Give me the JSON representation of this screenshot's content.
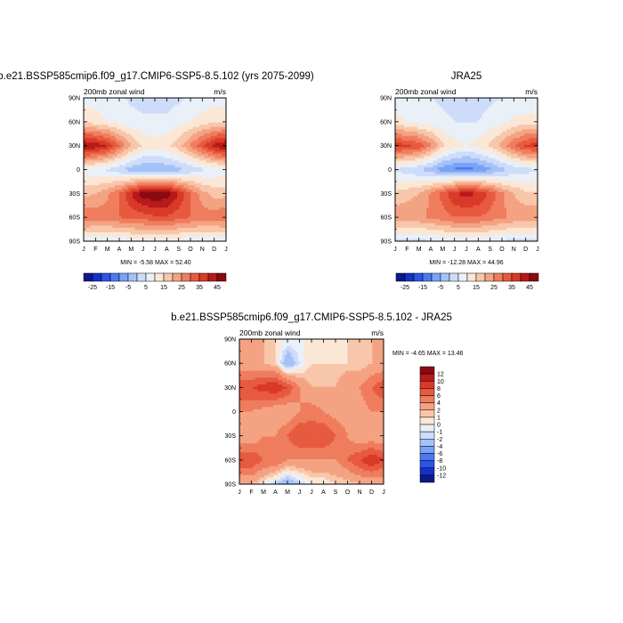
{
  "panels": {
    "top_left": {
      "title": "b.e21.BSSP585cmip6.f09_g17.CMIP6-SSP5-8.5.102 (yrs 2075-2099)",
      "left_label": "200mb zonal wind",
      "right_label": "m/s",
      "min_label": "MIN = ",
      "min_value": "-5.58",
      "max_label": "MAX = ",
      "max_value": "52.40"
    },
    "top_right": {
      "title": "JRA25",
      "left_label": "200mb zonal wind",
      "right_label": "m/s",
      "min_label": "MIN = ",
      "min_value": "-12.28",
      "max_label": "MAX = ",
      "max_value": "44.96"
    },
    "bottom": {
      "title": "b.e21.BSSP585cmip6.f09_g17.CMIP6-SSP5-8.5.102 - JRA25",
      "left_label": "200mb zonal wind",
      "right_label": "m/s",
      "min_label": "MIN = ",
      "min_value": "-4.65",
      "max_label": "MAX = ",
      "max_value": "13.46"
    }
  },
  "colorbars": {
    "top": {
      "labels": [
        "-25",
        "-15",
        "-5",
        "5",
        "15",
        "25",
        "35",
        "45"
      ],
      "colors": [
        "#0a1a8c",
        "#1530c8",
        "#2a55e6",
        "#4a7af2",
        "#7aa2f6",
        "#a5c2f8",
        "#cddcf8",
        "#eaf0f8",
        "#fbe7d6",
        "#f8c6aa",
        "#f4a382",
        "#ef7d5e",
        "#e75a40",
        "#d93a28",
        "#b8191a",
        "#8a0a10"
      ]
    },
    "bottom": {
      "labels": [
        "12",
        "10",
        "8",
        "6",
        "4",
        "2",
        "1",
        "0",
        "-1",
        "-2",
        "-4",
        "-6",
        "-8",
        "-10",
        "-12"
      ],
      "colors": [
        "#8a0a10",
        "#b8191a",
        "#d93a28",
        "#e75a40",
        "#ef7d5e",
        "#f4a382",
        "#f8c6aa",
        "#fbe7d6",
        "#eaf0f8",
        "#cddcf8",
        "#a5c2f8",
        "#7aa2f6",
        "#4a7af2",
        "#2a55e6",
        "#1530c8",
        "#0a1a8c"
      ]
    }
  },
  "chart_data": [
    {
      "type": "heatmap",
      "title": "b.e21.BSSP585cmip6.f09_g17.CMIP6-SSP5-8.5.102 (yrs 2075-2099)",
      "x": [
        "J",
        "F",
        "M",
        "A",
        "M",
        "J",
        "J",
        "A",
        "S",
        "O",
        "N",
        "D",
        "J"
      ],
      "y": [
        "90N",
        "60N",
        "30N",
        "0",
        "30S",
        "60S",
        "90S"
      ],
      "ylim": [
        -90,
        90
      ],
      "grid": false,
      "series": [
        {
          "values": [
            [
              8,
              8,
              7,
              6,
              4,
              3,
              3,
              3,
              4,
              6,
              7,
              8,
              8
            ],
            [
              14,
              12,
              10,
              8,
              7,
              6,
              6,
              6,
              8,
              10,
              12,
              14,
              14
            ],
            [
              46,
              44,
              40,
              30,
              20,
              14,
              12,
              14,
              18,
              26,
              34,
              42,
              46
            ],
            [
              8,
              6,
              4,
              1,
              -3,
              -5,
              -5,
              -4,
              -2,
              1,
              4,
              6,
              8
            ],
            [
              18,
              20,
              24,
              30,
              40,
              48,
              50,
              48,
              40,
              30,
              22,
              18,
              18
            ],
            [
              30,
              28,
              28,
              30,
              32,
              32,
              34,
              34,
              32,
              30,
              28,
              28,
              30
            ],
            [
              6,
              6,
              6,
              6,
              7,
              8,
              8,
              8,
              7,
              6,
              6,
              6,
              6
            ]
          ]
        }
      ]
    },
    {
      "type": "heatmap",
      "title": "JRA25",
      "x": [
        "J",
        "F",
        "M",
        "A",
        "M",
        "J",
        "J",
        "A",
        "S",
        "O",
        "N",
        "D",
        "J"
      ],
      "y": [
        "90N",
        "60N",
        "30N",
        "0",
        "30S",
        "60S",
        "90S"
      ],
      "ylim": [
        -90,
        90
      ],
      "grid": false,
      "series": [
        {
          "values": [
            [
              6,
              6,
              5,
              5,
              4,
              3,
              3,
              3,
              4,
              5,
              6,
              6,
              6
            ],
            [
              12,
              10,
              8,
              7,
              6,
              5,
              5,
              5,
              7,
              9,
              11,
              12,
              12
            ],
            [
              38,
              36,
              34,
              26,
              16,
              12,
              10,
              12,
              16,
              22,
              30,
              36,
              38
            ],
            [
              4,
              2,
              0,
              -3,
              -8,
              -11,
              -12,
              -10,
              -6,
              -2,
              1,
              3,
              4
            ],
            [
              16,
              18,
              20,
              26,
              32,
              40,
              42,
              40,
              34,
              26,
              20,
              16,
              16
            ],
            [
              24,
              24,
              24,
              26,
              28,
              30,
              30,
              30,
              28,
              26,
              24,
              24,
              24
            ],
            [
              4,
              4,
              4,
              4,
              5,
              6,
              6,
              6,
              5,
              4,
              4,
              4,
              4
            ]
          ]
        }
      ]
    },
    {
      "type": "heatmap",
      "title": "b.e21.BSSP585cmip6.f09_g17.CMIP6-SSP5-8.5.102 - JRA25",
      "x": [
        "J",
        "F",
        "M",
        "A",
        "M",
        "J",
        "J",
        "A",
        "S",
        "O",
        "N",
        "D",
        "J"
      ],
      "y": [
        "90N",
        "60N",
        "30N",
        "0",
        "30S",
        "60S",
        "90S"
      ],
      "ylim": [
        -90,
        90
      ],
      "grid": false,
      "series": [
        {
          "values": [
            [
              2,
              2,
              2,
              1,
              0,
              0,
              0,
              0,
              0,
              1,
              2,
              2,
              2
            ],
            [
              2,
              2,
              2,
              1,
              -4,
              -1,
              1,
              1,
              1,
              1,
              1,
              2,
              2
            ],
            [
              8,
              8,
              9,
              10,
              8,
              4,
              2,
              2,
              2,
              4,
              4,
              6,
              8
            ],
            [
              4,
              4,
              3,
              2,
              2,
              4,
              5,
              4,
              3,
              3,
              3,
              4,
              4
            ],
            [
              2,
              2,
              4,
              4,
              6,
              8,
              8,
              8,
              6,
              4,
              2,
              2,
              2
            ],
            [
              8,
              8,
              6,
              6,
              4,
              4,
              4,
              4,
              4,
              6,
              8,
              10,
              8
            ],
            [
              2,
              2,
              0,
              -2,
              -4,
              -2,
              0,
              0,
              1,
              1,
              2,
              2,
              2
            ]
          ]
        }
      ]
    }
  ]
}
